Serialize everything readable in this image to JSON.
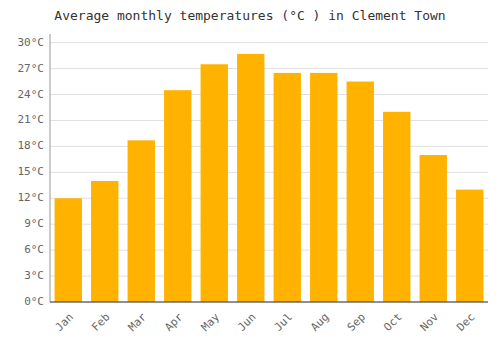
{
  "chart_data": {
    "type": "bar",
    "title": "Average monthly temperatures (°C ) in Clement Town",
    "categories": [
      "Jan",
      "Feb",
      "Mar",
      "Apr",
      "May",
      "Jun",
      "Jul",
      "Aug",
      "Sep",
      "Oct",
      "Nov",
      "Dec"
    ],
    "values": [
      12.0,
      14.0,
      18.7,
      24.5,
      27.5,
      28.7,
      26.5,
      26.5,
      25.5,
      22.0,
      17.0,
      13.0
    ],
    "color": "#FFB300",
    "ylim": [
      0,
      31
    ],
    "yticks": [
      {
        "value": 0,
        "label": "0°C"
      },
      {
        "value": 3,
        "label": "3°C"
      },
      {
        "value": 6,
        "label": "6°C"
      },
      {
        "value": 9,
        "label": "9°C"
      },
      {
        "value": 12,
        "label": "12°C"
      },
      {
        "value": 15,
        "label": "15°C"
      },
      {
        "value": 18,
        "label": "18°C"
      },
      {
        "value": 21,
        "label": "21°C"
      },
      {
        "value": 24,
        "label": "24°C"
      },
      {
        "value": 27,
        "label": "27°C"
      },
      {
        "value": 30,
        "label": "30°C"
      }
    ],
    "grid": true
  }
}
